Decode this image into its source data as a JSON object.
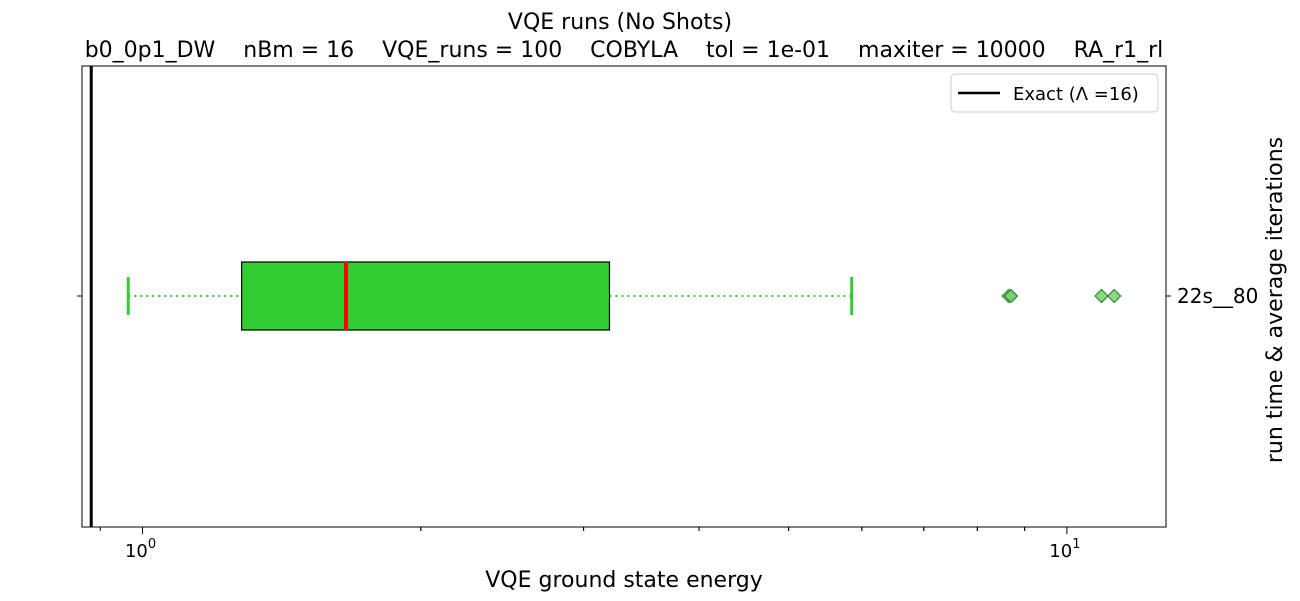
{
  "chart_data": {
    "type": "box",
    "title": "VQE runs (No Shots)",
    "subtitle": "b0_0p1_DW    nBm = 16    VQE_runs = 100    COBYLA    tol = 1e-01    maxiter = 10000    RA_r1_rl",
    "xlabel": "VQE ground state energy",
    "ylabel_right": "run time & average iterations",
    "x_scale": "log",
    "xlim": [
      0.86,
      12.8
    ],
    "x_ticks": [
      {
        "value": 1,
        "base": "10",
        "exp": "0"
      },
      {
        "value": 10,
        "base": "10",
        "exp": "1"
      }
    ],
    "categories": [
      "22s__80"
    ],
    "box": {
      "whisker_low": 0.965,
      "q1": 1.28,
      "median": 1.66,
      "q3": 3.2,
      "whisker_high": 5.85,
      "outliers": [
        8.65,
        8.7,
        10.9,
        11.25
      ]
    },
    "reference_line": {
      "label": "Exact (Λ =16)",
      "value": 0.88
    },
    "legend_position": "top-right",
    "colors": {
      "box_fill": "#33cc33",
      "median": "#ff0000",
      "whisker": "#33cc33",
      "outlier_fill": "#7ccf6e",
      "outlier_edge": "#2e8b2e",
      "reference": "#000000"
    }
  }
}
